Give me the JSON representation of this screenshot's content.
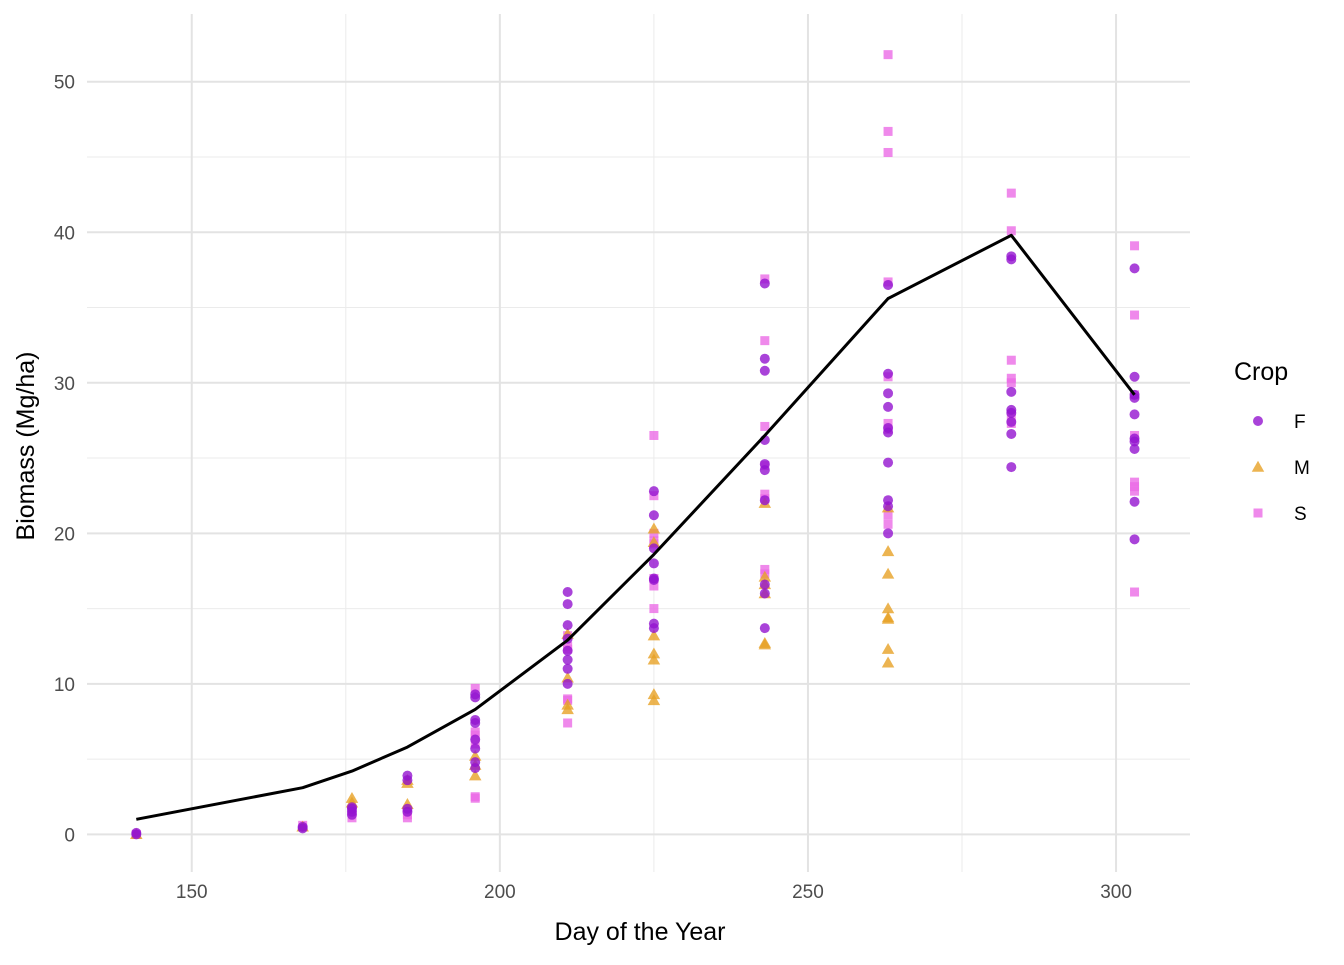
{
  "chart_data": {
    "type": "scatter",
    "title": "",
    "xlabel": "Day of the Year",
    "ylabel": "Biomass (Mg/ha)",
    "xlim": [
      133,
      312
    ],
    "ylim": [
      -2.5,
      54.5
    ],
    "x_ticks": [
      150,
      200,
      250,
      300
    ],
    "y_ticks": [
      0,
      10,
      20,
      30,
      40,
      50
    ],
    "x_tick_labels": [
      "150",
      "200",
      "250",
      "300"
    ],
    "y_tick_labels": [
      "0",
      "10",
      "20",
      "30",
      "40",
      "50"
    ],
    "grid": true,
    "legend": {
      "title": "Crop",
      "placement": "right",
      "entries": [
        {
          "label": "F",
          "color": "#9414CF",
          "shape": "circle"
        },
        {
          "label": "M",
          "color": "#E7A126",
          "shape": "triangle"
        },
        {
          "label": "S",
          "color": "#EB6CE6",
          "shape": "square"
        }
      ]
    },
    "series": [
      {
        "name": "F",
        "color": "#9414CF",
        "shape": "circle",
        "x": [
          141,
          141,
          168,
          168,
          176,
          176,
          176,
          176,
          185,
          185,
          185,
          185,
          196,
          196,
          196,
          196,
          196,
          196,
          196,
          196,
          211,
          211,
          211,
          211,
          211,
          211,
          211,
          211,
          225,
          225,
          225,
          225,
          225,
          225,
          225,
          225,
          243,
          243,
          243,
          243,
          243,
          243,
          243,
          243,
          243,
          243,
          263,
          263,
          263,
          263,
          263,
          263,
          263,
          263,
          263,
          263,
          283,
          283,
          283,
          283,
          283,
          283,
          283,
          283,
          303,
          303,
          303,
          303,
          303,
          303,
          303,
          303,
          303,
          303
        ],
        "y": [
          0.1,
          0.0,
          0.5,
          0.4,
          1.8,
          1.5,
          1.3,
          1.7,
          3.9,
          3.6,
          1.7,
          1.5,
          9.3,
          9.1,
          7.6,
          7.4,
          6.3,
          5.7,
          4.8,
          4.4,
          16.1,
          15.3,
          13.9,
          13.0,
          12.2,
          11.6,
          11.0,
          10.0,
          22.8,
          21.2,
          19.0,
          18.0,
          17.0,
          16.9,
          14.0,
          13.7,
          36.6,
          31.6,
          30.8,
          26.2,
          24.6,
          24.2,
          22.2,
          16.6,
          16.0,
          13.7,
          36.5,
          30.6,
          29.3,
          28.4,
          27.0,
          26.7,
          24.7,
          22.2,
          21.8,
          20.0,
          38.4,
          38.2,
          29.4,
          28.2,
          27.4,
          26.6,
          24.4,
          28.0,
          37.6,
          30.4,
          29.2,
          27.9,
          26.3,
          26.1,
          25.6,
          22.1,
          19.6,
          29.0
        ]
      },
      {
        "name": "M",
        "color": "#E7A126",
        "shape": "triangle",
        "x": [
          141,
          168,
          176,
          176,
          185,
          185,
          185,
          196,
          196,
          196,
          211,
          211,
          211,
          211,
          225,
          225,
          225,
          225,
          225,
          225,
          225,
          243,
          243,
          243,
          243,
          243,
          243,
          263,
          263,
          263,
          263,
          263,
          263,
          263,
          263
        ],
        "y": [
          0.0,
          0.5,
          2.4,
          2.1,
          3.6,
          3.4,
          2.0,
          5.2,
          4.6,
          3.9,
          10.4,
          8.6,
          8.3,
          13.3,
          20.3,
          19.4,
          13.2,
          12.0,
          11.6,
          9.3,
          8.9,
          22.0,
          17.1,
          16.6,
          16.0,
          12.7,
          12.6,
          21.7,
          18.8,
          17.3,
          15.0,
          14.4,
          14.3,
          12.3,
          11.4
        ]
      },
      {
        "name": "S",
        "color": "#EB6CE6",
        "shape": "square",
        "x": [
          141,
          168,
          176,
          176,
          185,
          185,
          196,
          196,
          196,
          196,
          196,
          196,
          211,
          211,
          211,
          211,
          211,
          211,
          225,
          225,
          225,
          225,
          225,
          225,
          225,
          225,
          243,
          243,
          243,
          243,
          243,
          243,
          243,
          243,
          263,
          263,
          263,
          263,
          263,
          263,
          263,
          263,
          263,
          283,
          283,
          283,
          283,
          283,
          283,
          283,
          303,
          303,
          303,
          303,
          303,
          303,
          303,
          303
        ],
        "y": [
          0.0,
          0.6,
          1.1,
          1.5,
          1.1,
          1.3,
          9.7,
          6.8,
          6.6,
          6.0,
          2.5,
          2.4,
          13.2,
          12.5,
          12.3,
          9.0,
          8.9,
          7.4,
          26.5,
          22.5,
          20.0,
          19.5,
          19.3,
          17.0,
          16.5,
          15.0,
          36.9,
          32.8,
          27.1,
          24.5,
          22.6,
          22.3,
          17.6,
          17.3,
          51.8,
          46.7,
          45.3,
          36.7,
          30.4,
          27.3,
          26.9,
          21.2,
          20.6,
          42.6,
          40.1,
          31.5,
          30.3,
          30.0,
          27.9,
          27.3,
          39.1,
          34.5,
          29.2,
          26.5,
          23.4,
          23.1,
          22.8,
          16.1
        ]
      },
      {
        "name": "",
        "type": "line",
        "color": "#000000",
        "x": [
          141,
          168,
          176,
          185,
          196,
          211,
          225,
          243,
          263,
          283,
          303
        ],
        "y": [
          1.0,
          3.1,
          4.2,
          5.8,
          8.3,
          12.9,
          18.6,
          26.5,
          35.6,
          39.8,
          29.2
        ]
      }
    ]
  }
}
